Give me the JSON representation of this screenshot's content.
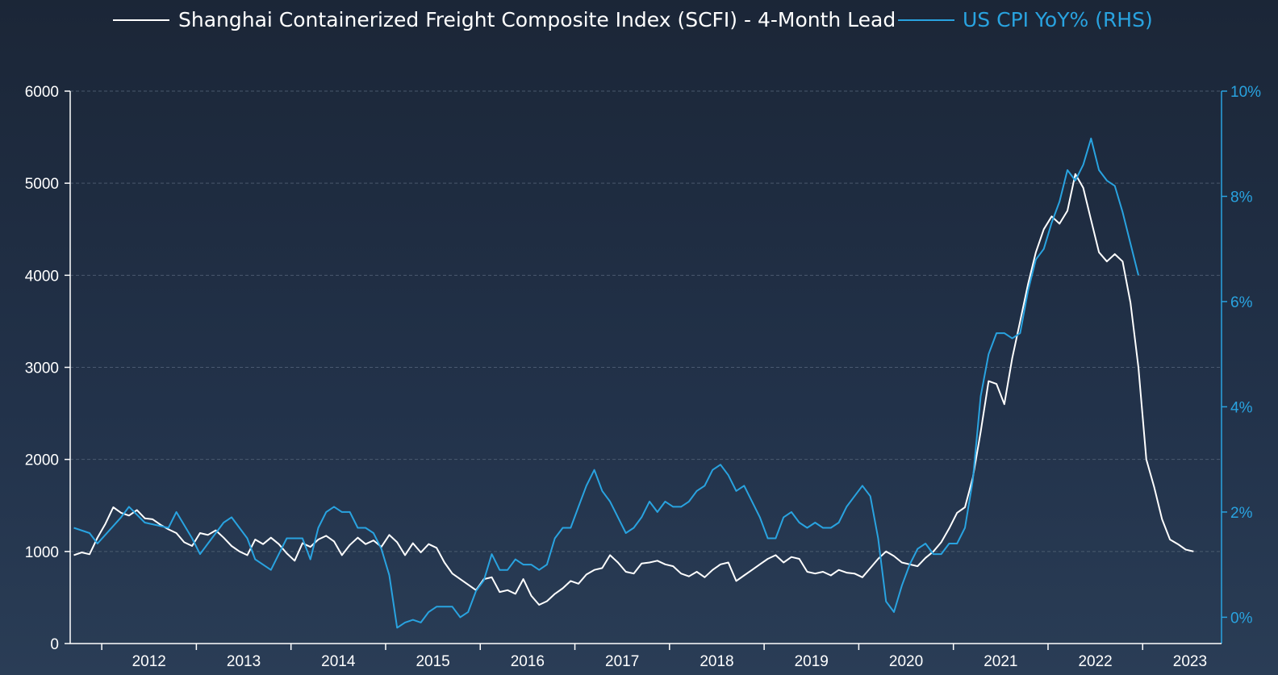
{
  "chart_data": {
    "type": "line",
    "title": "",
    "legend": {
      "placement": "top",
      "entries": [
        {
          "label": "Shanghai Containerized Freight Composite Index (SCFI) - 4-Month Lead",
          "color": "#ffffff"
        },
        {
          "label": "US CPI YoY% (RHS)",
          "color": "#29a3e0"
        }
      ]
    },
    "x_axis": {
      "type": "date",
      "range": [
        "2011-09",
        "2023-11"
      ],
      "tick_labels": [
        "2012",
        "2013",
        "2014",
        "2015",
        "2016",
        "2017",
        "2018",
        "2019",
        "2020",
        "2021",
        "2022",
        "2023"
      ]
    },
    "y_axis_left": {
      "range": [
        0,
        6000
      ],
      "tick_labels": [
        "0",
        "1000",
        "2000",
        "3000",
        "4000",
        "5000",
        "6000"
      ]
    },
    "y_axis_right": {
      "range": [
        -0.5,
        10
      ],
      "tick_labels": [
        "0%",
        "2%",
        "4%",
        "6%",
        "8%",
        "10%"
      ],
      "color": "#29a3e0"
    },
    "grid": "horizontal dashed",
    "series": [
      {
        "name": "Shanghai Containerized Freight Composite Index (SCFI) - 4-Month Lead",
        "axis": "left",
        "color": "#ffffff",
        "points": [
          [
            "2011-09-15",
            960
          ],
          [
            "2011-10-15",
            990
          ],
          [
            "2011-11-15",
            970
          ],
          [
            "2011-12-15",
            1150
          ],
          [
            "2012-01-15",
            1300
          ],
          [
            "2012-02-15",
            1480
          ],
          [
            "2012-03-15",
            1420
          ],
          [
            "2012-04-15",
            1390
          ],
          [
            "2012-05-15",
            1450
          ],
          [
            "2012-06-15",
            1360
          ],
          [
            "2012-07-15",
            1350
          ],
          [
            "2012-08-15",
            1290
          ],
          [
            "2012-09-15",
            1240
          ],
          [
            "2012-10-15",
            1200
          ],
          [
            "2012-11-15",
            1100
          ],
          [
            "2012-12-15",
            1060
          ],
          [
            "2013-01-15",
            1200
          ],
          [
            "2013-02-15",
            1180
          ],
          [
            "2013-03-15",
            1230
          ],
          [
            "2013-04-15",
            1150
          ],
          [
            "2013-05-15",
            1060
          ],
          [
            "2013-06-15",
            1000
          ],
          [
            "2013-07-15",
            960
          ],
          [
            "2013-08-15",
            1130
          ],
          [
            "2013-09-15",
            1080
          ],
          [
            "2013-10-15",
            1150
          ],
          [
            "2013-11-15",
            1080
          ],
          [
            "2013-12-15",
            980
          ],
          [
            "2014-01-15",
            900
          ],
          [
            "2014-02-15",
            1090
          ],
          [
            "2014-03-15",
            1050
          ],
          [
            "2014-04-15",
            1130
          ],
          [
            "2014-05-15",
            1170
          ],
          [
            "2014-06-15",
            1110
          ],
          [
            "2014-07-15",
            960
          ],
          [
            "2014-08-15",
            1070
          ],
          [
            "2014-09-15",
            1150
          ],
          [
            "2014-10-15",
            1080
          ],
          [
            "2014-11-15",
            1120
          ],
          [
            "2014-12-15",
            1050
          ],
          [
            "2015-01-15",
            1180
          ],
          [
            "2015-02-15",
            1100
          ],
          [
            "2015-03-15",
            960
          ],
          [
            "2015-04-15",
            1090
          ],
          [
            "2015-05-15",
            990
          ],
          [
            "2015-06-15",
            1080
          ],
          [
            "2015-07-15",
            1040
          ],
          [
            "2015-08-15",
            880
          ],
          [
            "2015-09-15",
            760
          ],
          [
            "2015-10-15",
            700
          ],
          [
            "2015-11-15",
            640
          ],
          [
            "2015-12-15",
            580
          ],
          [
            "2016-01-15",
            700
          ],
          [
            "2016-02-15",
            720
          ],
          [
            "2016-03-15",
            560
          ],
          [
            "2016-04-15",
            580
          ],
          [
            "2016-05-15",
            540
          ],
          [
            "2016-06-15",
            700
          ],
          [
            "2016-07-15",
            520
          ],
          [
            "2016-08-15",
            420
          ],
          [
            "2016-09-15",
            460
          ],
          [
            "2016-10-15",
            540
          ],
          [
            "2016-11-15",
            600
          ],
          [
            "2016-12-15",
            680
          ],
          [
            "2017-01-15",
            650
          ],
          [
            "2017-02-15",
            750
          ],
          [
            "2017-03-15",
            800
          ],
          [
            "2017-04-15",
            820
          ],
          [
            "2017-05-15",
            960
          ],
          [
            "2017-06-15",
            880
          ],
          [
            "2017-07-15",
            780
          ],
          [
            "2017-08-15",
            760
          ],
          [
            "2017-09-15",
            870
          ],
          [
            "2017-10-15",
            880
          ],
          [
            "2017-11-15",
            900
          ],
          [
            "2017-12-15",
            860
          ],
          [
            "2018-01-15",
            840
          ],
          [
            "2018-02-15",
            760
          ],
          [
            "2018-03-15",
            730
          ],
          [
            "2018-04-15",
            780
          ],
          [
            "2018-05-15",
            720
          ],
          [
            "2018-06-15",
            800
          ],
          [
            "2018-07-15",
            860
          ],
          [
            "2018-08-15",
            880
          ],
          [
            "2018-09-15",
            680
          ],
          [
            "2018-10-15",
            740
          ],
          [
            "2018-11-15",
            800
          ],
          [
            "2018-12-15",
            860
          ],
          [
            "2019-01-15",
            920
          ],
          [
            "2019-02-15",
            960
          ],
          [
            "2019-03-15",
            880
          ],
          [
            "2019-04-15",
            940
          ],
          [
            "2019-05-15",
            920
          ],
          [
            "2019-06-15",
            780
          ],
          [
            "2019-07-15",
            760
          ],
          [
            "2019-08-15",
            780
          ],
          [
            "2019-09-15",
            740
          ],
          [
            "2019-10-15",
            800
          ],
          [
            "2019-11-15",
            770
          ],
          [
            "2019-12-15",
            760
          ],
          [
            "2020-01-15",
            720
          ],
          [
            "2020-02-15",
            820
          ],
          [
            "2020-03-15",
            920
          ],
          [
            "2020-04-15",
            1000
          ],
          [
            "2020-05-15",
            950
          ],
          [
            "2020-06-15",
            880
          ],
          [
            "2020-07-15",
            860
          ],
          [
            "2020-08-15",
            840
          ],
          [
            "2020-09-15",
            930
          ],
          [
            "2020-10-15",
            1000
          ],
          [
            "2020-11-15",
            1100
          ],
          [
            "2020-12-15",
            1250
          ],
          [
            "2021-01-15",
            1420
          ],
          [
            "2021-02-15",
            1480
          ],
          [
            "2021-03-15",
            1800
          ],
          [
            "2021-04-15",
            2300
          ],
          [
            "2021-05-15",
            2850
          ],
          [
            "2021-06-15",
            2820
          ],
          [
            "2021-07-15",
            2600
          ],
          [
            "2021-08-15",
            3100
          ],
          [
            "2021-09-15",
            3500
          ],
          [
            "2021-10-15",
            3900
          ],
          [
            "2021-11-15",
            4250
          ],
          [
            "2021-12-15",
            4500
          ],
          [
            "2022-01-15",
            4640
          ],
          [
            "2022-02-15",
            4560
          ],
          [
            "2022-03-15",
            4700
          ],
          [
            "2022-04-15",
            5100
          ],
          [
            "2022-05-15",
            4950
          ],
          [
            "2022-06-15",
            4600
          ],
          [
            "2022-07-15",
            4250
          ],
          [
            "2022-08-15",
            4150
          ],
          [
            "2022-09-15",
            4230
          ],
          [
            "2022-10-15",
            4150
          ],
          [
            "2022-11-15",
            3700
          ],
          [
            "2022-12-15",
            3000
          ],
          [
            "2023-01-15",
            2000
          ],
          [
            "2023-02-15",
            1700
          ],
          [
            "2023-03-15",
            1350
          ],
          [
            "2023-04-15",
            1130
          ],
          [
            "2023-05-15",
            1080
          ],
          [
            "2023-06-15",
            1020
          ],
          [
            "2023-07-15",
            1000
          ]
        ]
      },
      {
        "name": "US CPI YoY% (RHS)",
        "axis": "right",
        "color": "#29a3e0",
        "points": [
          [
            "2011-09-15",
            1.7
          ],
          [
            "2011-11-15",
            1.6
          ],
          [
            "2011-12-15",
            1.4
          ],
          [
            "2012-03-15",
            1.9
          ],
          [
            "2012-04-15",
            2.1
          ],
          [
            "2012-06-15",
            1.8
          ],
          [
            "2012-09-15",
            1.7
          ],
          [
            "2012-10-15",
            2.0
          ],
          [
            "2012-12-15",
            1.5
          ],
          [
            "2013-01-15",
            1.2
          ],
          [
            "2013-02-15",
            1.4
          ],
          [
            "2013-04-15",
            1.8
          ],
          [
            "2013-05-15",
            1.9
          ],
          [
            "2013-07-15",
            1.5
          ],
          [
            "2013-08-15",
            1.1
          ],
          [
            "2013-10-15",
            0.9
          ],
          [
            "2013-11-15",
            1.2
          ],
          [
            "2013-12-15",
            1.5
          ],
          [
            "2014-02-15",
            1.5
          ],
          [
            "2014-03-15",
            1.1
          ],
          [
            "2014-04-15",
            1.7
          ],
          [
            "2014-05-15",
            2.0
          ],
          [
            "2014-06-15",
            2.1
          ],
          [
            "2014-07-15",
            2.0
          ],
          [
            "2014-08-15",
            2.0
          ],
          [
            "2014-09-15",
            1.7
          ],
          [
            "2014-10-15",
            1.7
          ],
          [
            "2014-11-15",
            1.6
          ],
          [
            "2014-12-15",
            1.3
          ],
          [
            "2015-01-15",
            0.8
          ],
          [
            "2015-02-15",
            -0.2
          ],
          [
            "2015-03-15",
            -0.1
          ],
          [
            "2015-04-15",
            -0.05
          ],
          [
            "2015-05-15",
            -0.1
          ],
          [
            "2015-06-15",
            0.1
          ],
          [
            "2015-07-15",
            0.2
          ],
          [
            "2015-09-15",
            0.2
          ],
          [
            "2015-10-15",
            0.0
          ],
          [
            "2015-11-15",
            0.1
          ],
          [
            "2015-12-15",
            0.5
          ],
          [
            "2016-01-15",
            0.7
          ],
          [
            "2016-02-15",
            1.2
          ],
          [
            "2016-03-15",
            0.9
          ],
          [
            "2016-04-15",
            0.9
          ],
          [
            "2016-05-15",
            1.1
          ],
          [
            "2016-06-15",
            1.0
          ],
          [
            "2016-07-15",
            1.0
          ],
          [
            "2016-08-15",
            0.9
          ],
          [
            "2016-09-15",
            1.0
          ],
          [
            "2016-10-15",
            1.5
          ],
          [
            "2016-11-15",
            1.7
          ],
          [
            "2016-12-15",
            1.7
          ],
          [
            "2017-01-15",
            2.1
          ],
          [
            "2017-02-15",
            2.5
          ],
          [
            "2017-03-15",
            2.8
          ],
          [
            "2017-04-15",
            2.4
          ],
          [
            "2017-05-15",
            2.2
          ],
          [
            "2017-06-15",
            1.9
          ],
          [
            "2017-07-15",
            1.6
          ],
          [
            "2017-08-15",
            1.7
          ],
          [
            "2017-09-15",
            1.9
          ],
          [
            "2017-10-15",
            2.2
          ],
          [
            "2017-11-15",
            2.0
          ],
          [
            "2017-12-15",
            2.2
          ],
          [
            "2018-01-15",
            2.1
          ],
          [
            "2018-02-15",
            2.1
          ],
          [
            "2018-03-15",
            2.2
          ],
          [
            "2018-04-15",
            2.4
          ],
          [
            "2018-05-15",
            2.5
          ],
          [
            "2018-06-15",
            2.8
          ],
          [
            "2018-07-15",
            2.9
          ],
          [
            "2018-08-15",
            2.7
          ],
          [
            "2018-09-15",
            2.4
          ],
          [
            "2018-10-15",
            2.5
          ],
          [
            "2018-11-15",
            2.2
          ],
          [
            "2018-12-15",
            1.9
          ],
          [
            "2019-01-15",
            1.5
          ],
          [
            "2019-02-15",
            1.5
          ],
          [
            "2019-03-15",
            1.9
          ],
          [
            "2019-04-15",
            2.0
          ],
          [
            "2019-05-15",
            1.8
          ],
          [
            "2019-06-15",
            1.7
          ],
          [
            "2019-07-15",
            1.8
          ],
          [
            "2019-08-15",
            1.7
          ],
          [
            "2019-09-15",
            1.7
          ],
          [
            "2019-10-15",
            1.8
          ],
          [
            "2019-11-15",
            2.1
          ],
          [
            "2019-12-15",
            2.3
          ],
          [
            "2020-01-15",
            2.5
          ],
          [
            "2020-02-15",
            2.3
          ],
          [
            "2020-03-15",
            1.5
          ],
          [
            "2020-04-15",
            0.3
          ],
          [
            "2020-05-15",
            0.1
          ],
          [
            "2020-06-15",
            0.6
          ],
          [
            "2020-07-15",
            1.0
          ],
          [
            "2020-08-15",
            1.3
          ],
          [
            "2020-09-15",
            1.4
          ],
          [
            "2020-10-15",
            1.2
          ],
          [
            "2020-11-15",
            1.2
          ],
          [
            "2020-12-15",
            1.4
          ],
          [
            "2021-01-15",
            1.4
          ],
          [
            "2021-02-15",
            1.7
          ],
          [
            "2021-03-15",
            2.6
          ],
          [
            "2021-04-15",
            4.2
          ],
          [
            "2021-05-15",
            5.0
          ],
          [
            "2021-06-15",
            5.4
          ],
          [
            "2021-07-15",
            5.4
          ],
          [
            "2021-08-15",
            5.3
          ],
          [
            "2021-09-15",
            5.4
          ],
          [
            "2021-10-15",
            6.2
          ],
          [
            "2021-11-15",
            6.8
          ],
          [
            "2021-12-15",
            7.0
          ],
          [
            "2022-01-15",
            7.5
          ],
          [
            "2022-02-15",
            7.9
          ],
          [
            "2022-03-15",
            8.5
          ],
          [
            "2022-04-15",
            8.3
          ],
          [
            "2022-05-15",
            8.6
          ],
          [
            "2022-06-15",
            9.1
          ],
          [
            "2022-07-15",
            8.5
          ],
          [
            "2022-08-15",
            8.3
          ],
          [
            "2022-09-15",
            8.2
          ],
          [
            "2022-10-15",
            7.7
          ],
          [
            "2022-11-15",
            7.1
          ],
          [
            "2022-12-15",
            6.5
          ]
        ]
      }
    ]
  }
}
